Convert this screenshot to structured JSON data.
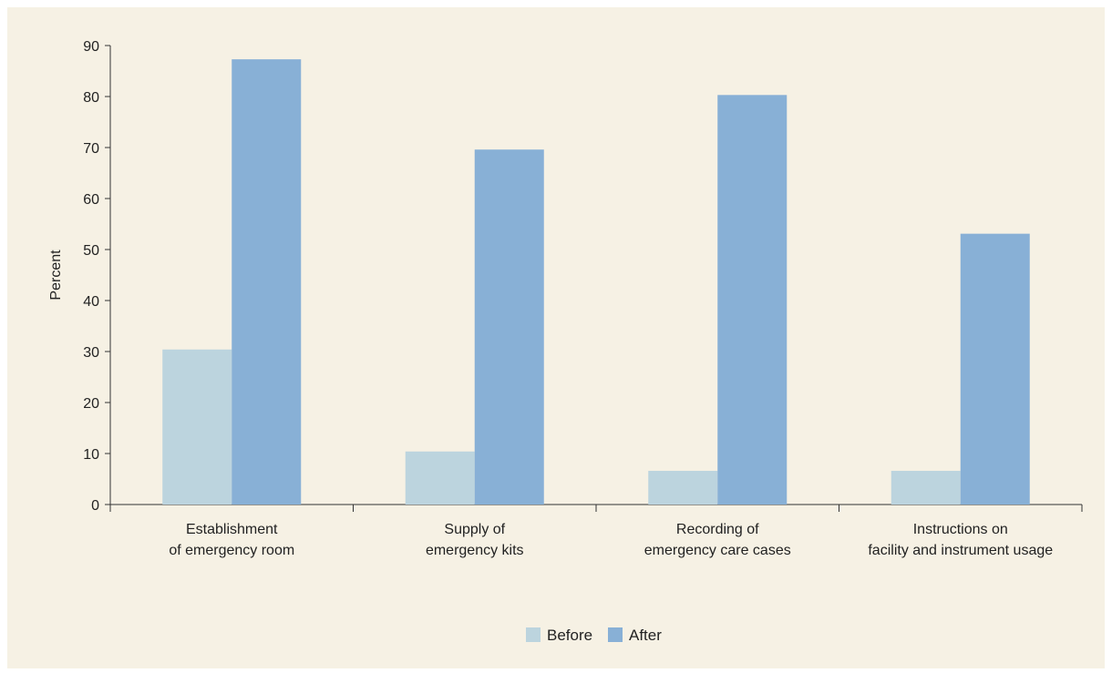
{
  "chart_data": {
    "type": "bar",
    "title": "",
    "xlabel": "",
    "ylabel": "Percent",
    "ylim": [
      0,
      90
    ],
    "yticks": [
      0,
      10,
      20,
      30,
      40,
      50,
      60,
      70,
      80,
      90
    ],
    "grid": false,
    "legend_position": "bottom",
    "categories": [
      [
        "Establishment",
        "of emergency room"
      ],
      [
        "Supply of",
        "emergency kits"
      ],
      [
        "Recording of",
        "emergency care cases"
      ],
      [
        "Instructions on",
        "facility and instrument usage"
      ]
    ],
    "series": [
      {
        "name": "Before",
        "color": "#bcd4de",
        "values": [
          30.4,
          10.4,
          6.6,
          6.6
        ]
      },
      {
        "name": "After",
        "color": "#88b0d6",
        "values": [
          87.3,
          69.6,
          80.3,
          53.1
        ]
      }
    ]
  }
}
